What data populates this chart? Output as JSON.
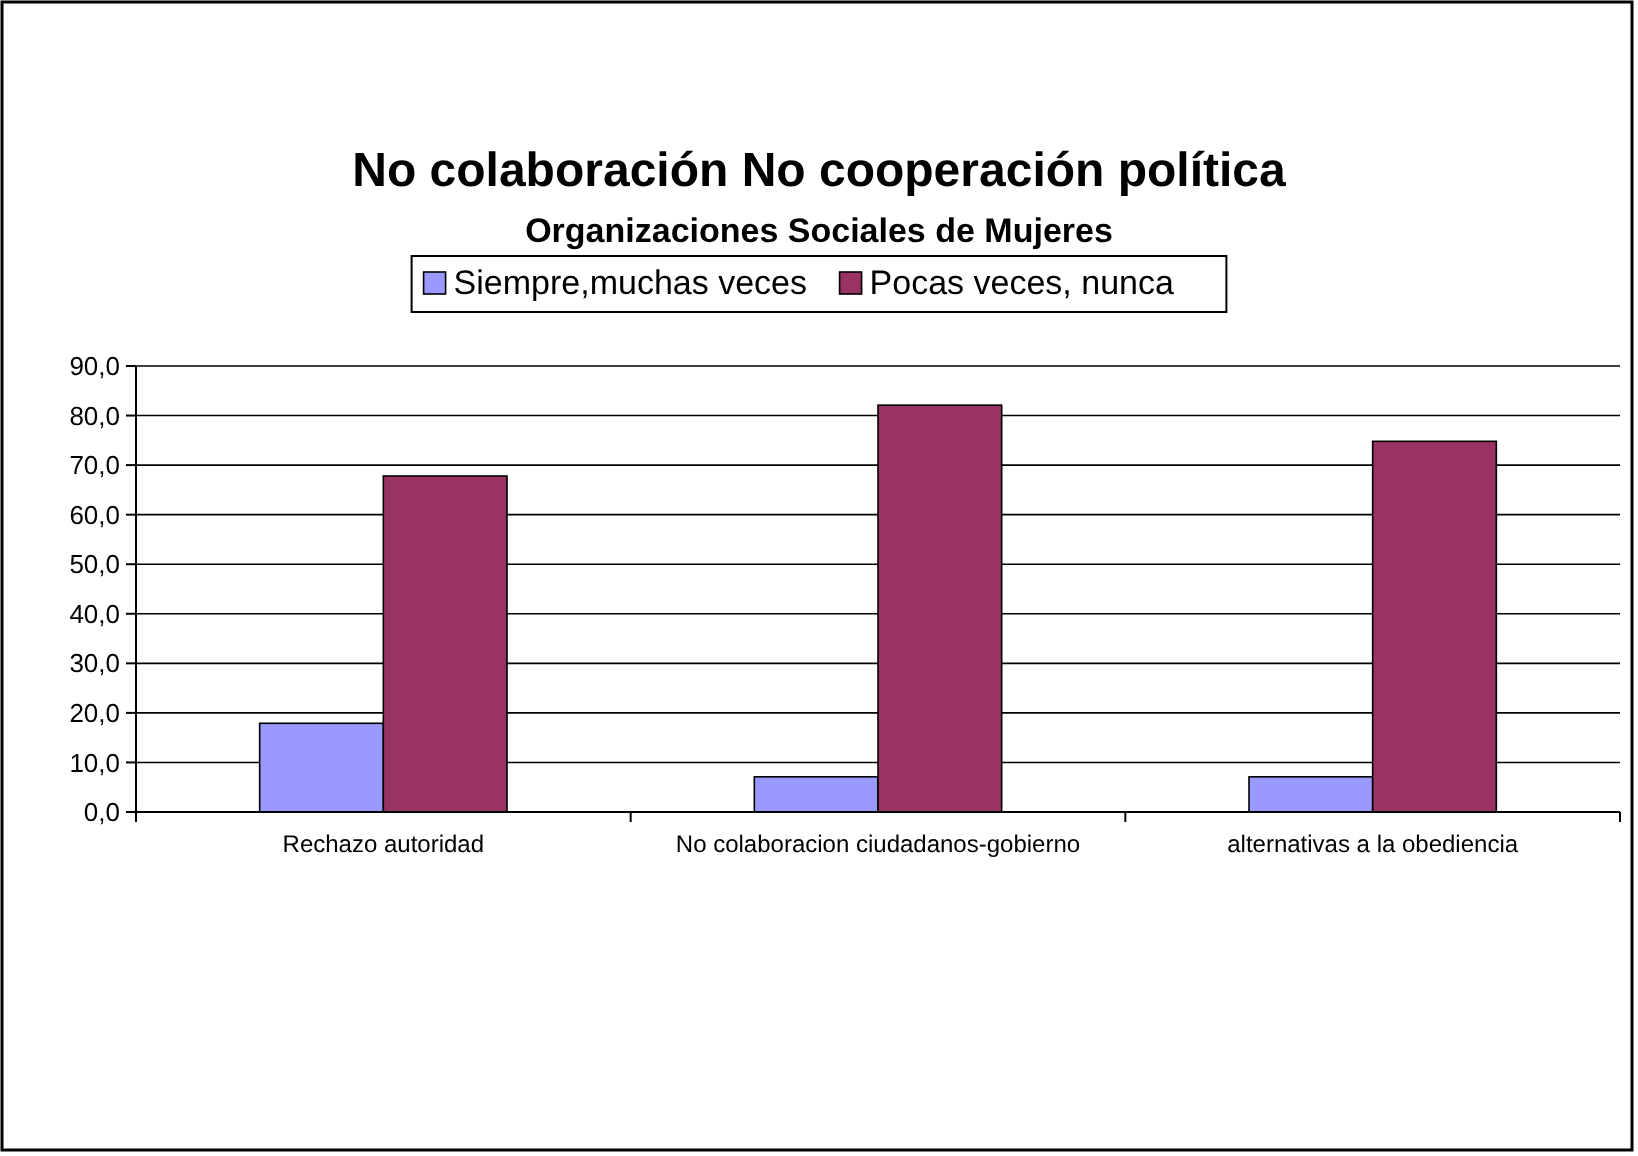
{
  "chart_data": {
    "type": "bar",
    "title": "No colaboración  No cooperación política",
    "subtitle": "Organizaciones Sociales de Mujeres",
    "categories": [
      "Rechazo autoridad",
      "No colaboracion ciudadanos-gobierno",
      "alternativas a la obediencia"
    ],
    "series": [
      {
        "name": "Siempre,muchas veces",
        "color": "#9999ff",
        "values": [
          17.9,
          7.1,
          7.1
        ]
      },
      {
        "name": "Pocas veces, nunca",
        "color": "#993366",
        "values": [
          67.8,
          82.1,
          74.8
        ]
      }
    ],
    "ylim": [
      0,
      90
    ],
    "yticks": [
      {
        "value": 0,
        "label": "0,0"
      },
      {
        "value": 10,
        "label": "10,0"
      },
      {
        "value": 20,
        "label": "20,0"
      },
      {
        "value": 30,
        "label": "30,0"
      },
      {
        "value": 40,
        "label": "40,0"
      },
      {
        "value": 50,
        "label": "50,0"
      },
      {
        "value": 60,
        "label": "60,0"
      },
      {
        "value": 70,
        "label": "70,0"
      },
      {
        "value": 80,
        "label": "80,0"
      },
      {
        "value": 90,
        "label": "90,0"
      }
    ],
    "grid": "y",
    "legend": "top"
  }
}
